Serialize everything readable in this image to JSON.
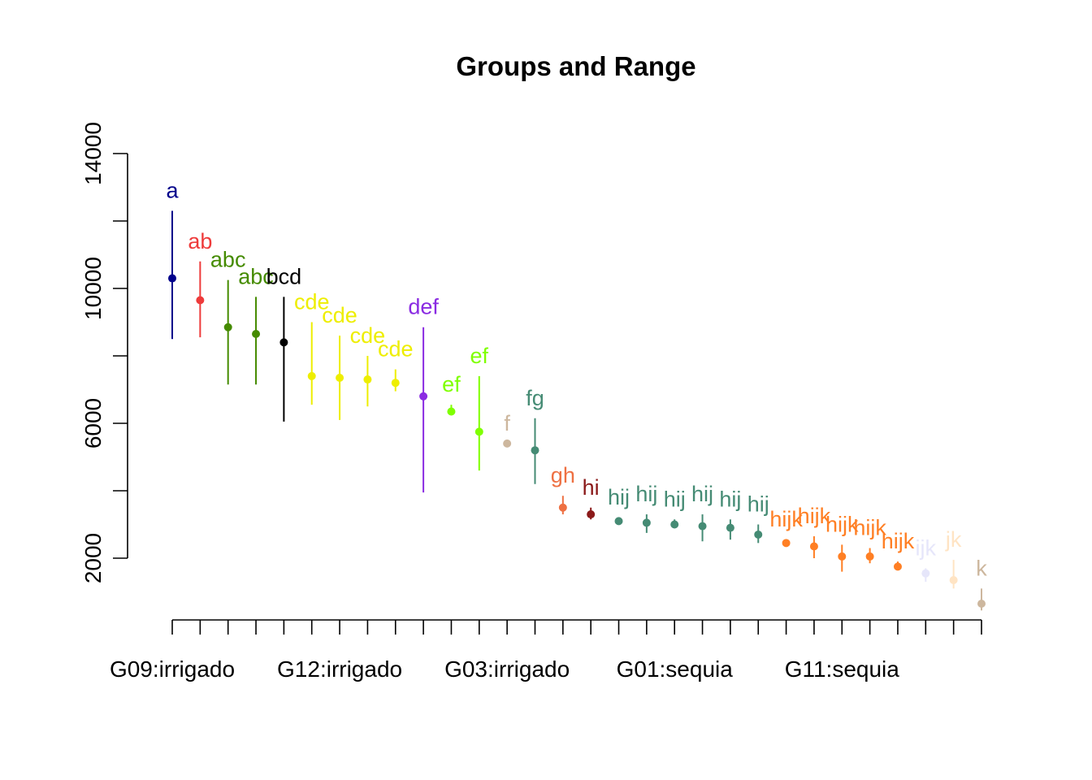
{
  "chart_data": {
    "type": "scatter",
    "title": "Groups and Range",
    "xlabel": "",
    "ylabel": "",
    "ylim": [
      0,
      16000
    ],
    "y_ticks": [
      2000,
      6000,
      10000,
      14000
    ],
    "y_minor_ticks": [
      4000,
      8000,
      12000
    ],
    "x_tick_labels": [
      {
        "index": 1,
        "label": "G09:irrigado"
      },
      {
        "index": 7,
        "label": "G12:irrigado"
      },
      {
        "index": 13,
        "label": "G03:irrigado"
      },
      {
        "index": 19,
        "label": "G01:sequia"
      },
      {
        "index": 25,
        "label": "G11:sequia"
      }
    ],
    "grid": false,
    "legend": "none",
    "points": [
      {
        "group": "a",
        "mean": 10300,
        "low": 8500,
        "high": 12300,
        "color": "#00008B"
      },
      {
        "group": "ab",
        "mean": 9650,
        "low": 8550,
        "high": 10800,
        "color": "#EE3B3B"
      },
      {
        "group": "abc",
        "mean": 8850,
        "low": 7150,
        "high": 10250,
        "color": "#458B00"
      },
      {
        "group": "abc",
        "mean": 8650,
        "low": 7150,
        "high": 9750,
        "color": "#458B00"
      },
      {
        "group": "bcd",
        "mean": 8400,
        "low": 6050,
        "high": 9750,
        "color": "#000000"
      },
      {
        "group": "cde",
        "mean": 7400,
        "low": 6550,
        "high": 9000,
        "color": "#EEEE00"
      },
      {
        "group": "cde",
        "mean": 7350,
        "low": 6100,
        "high": 8600,
        "color": "#EEEE00"
      },
      {
        "group": "cde",
        "mean": 7300,
        "low": 6500,
        "high": 8000,
        "color": "#EEEE00"
      },
      {
        "group": "cde",
        "mean": 7200,
        "low": 6950,
        "high": 7600,
        "color": "#EEEE00"
      },
      {
        "group": "def",
        "mean": 6800,
        "low": 3950,
        "high": 8850,
        "color": "#8A2BE2"
      },
      {
        "group": "ef",
        "mean": 6350,
        "low": 6250,
        "high": 6550,
        "color": "#7FFF00"
      },
      {
        "group": "ef",
        "mean": 5750,
        "low": 4600,
        "high": 7400,
        "color": "#7FFF00"
      },
      {
        "group": "f",
        "mean": 5400,
        "low": 5400,
        "high": 5400,
        "color": "#CDB79E"
      },
      {
        "group": "fg",
        "mean": 5200,
        "low": 4200,
        "high": 6150,
        "color": "#458B74"
      },
      {
        "group": "gh",
        "mean": 3500,
        "low": 3300,
        "high": 3850,
        "color": "#EE7042"
      },
      {
        "group": "hi",
        "mean": 3300,
        "low": 3150,
        "high": 3500,
        "color": "#8B1A1A"
      },
      {
        "group": "hij",
        "mean": 3100,
        "low": 3000,
        "high": 3200,
        "color": "#458B74"
      },
      {
        "group": "hij",
        "mean": 3050,
        "low": 2750,
        "high": 3300,
        "color": "#458B74"
      },
      {
        "group": "hij",
        "mean": 3000,
        "low": 2900,
        "high": 3150,
        "color": "#458B74"
      },
      {
        "group": "hij",
        "mean": 2950,
        "low": 2500,
        "high": 3300,
        "color": "#458B74"
      },
      {
        "group": "hij",
        "mean": 2900,
        "low": 2550,
        "high": 3150,
        "color": "#458B74"
      },
      {
        "group": "hij",
        "mean": 2700,
        "low": 2450,
        "high": 3000,
        "color": "#458B74"
      },
      {
        "group": "hijk",
        "mean": 2450,
        "low": 2400,
        "high": 2550,
        "color": "#FF7F24"
      },
      {
        "group": "hijk",
        "mean": 2350,
        "low": 2000,
        "high": 2650,
        "color": "#FF7F24"
      },
      {
        "group": "hijk",
        "mean": 2050,
        "low": 1600,
        "high": 2400,
        "color": "#FF7F24"
      },
      {
        "group": "hijk",
        "mean": 2050,
        "low": 1850,
        "high": 2300,
        "color": "#FF7F24"
      },
      {
        "group": "hijk",
        "mean": 1750,
        "low": 1650,
        "high": 1900,
        "color": "#FF7F24"
      },
      {
        "group": "ijk",
        "mean": 1550,
        "low": 1300,
        "high": 1700,
        "color": "#E6E6FA"
      },
      {
        "group": "jk",
        "mean": 1350,
        "low": 1100,
        "high": 1950,
        "color": "#FFE4C4"
      },
      {
        "group": "k",
        "mean": 650,
        "low": 450,
        "high": 1100,
        "color": "#CDB79E"
      }
    ]
  }
}
